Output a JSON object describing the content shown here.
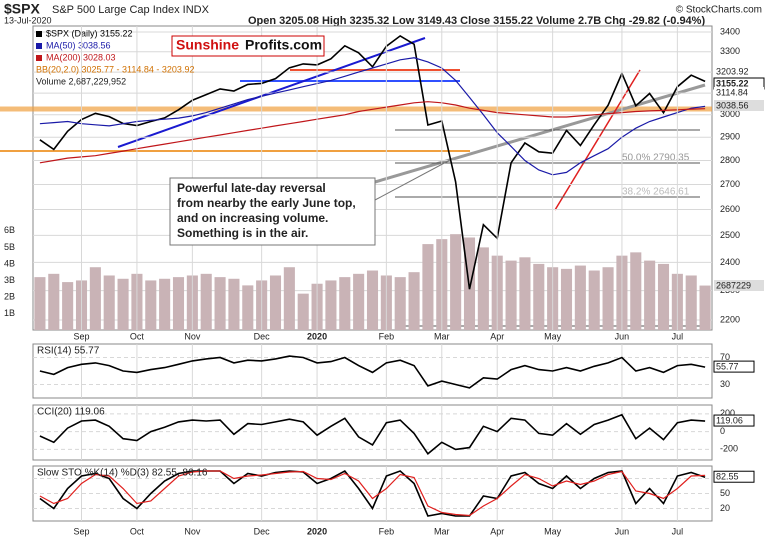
{
  "chart_data": [
    {
      "type": "line",
      "log_scale": true,
      "title": "$SPX",
      "subtitle": "S&P 500 Large Cap Index INDX",
      "date": "13-Jul-2020",
      "quote": "Open 3205.08 High 3235.32 Low 3149.43 Close 3155.22 Volume 2.7B Chg -29.82 (-0.94%)",
      "source": "© StockCharts.com",
      "watermark": [
        "Sunshine",
        "Profits.com"
      ],
      "annotation": [
        "Powerful late-day reversal",
        "from nearby the early June top,",
        "and on increasing volume.",
        "Something is in the air."
      ],
      "bb_legend": "BB(20,2.0) 3025.77 - 3114.84 - 3203.92",
      "price_labels": [
        "3203.92",
        "3155.22",
        "3114.84",
        "3038.56"
      ],
      "fib_labels": [
        "50.0% 2790.35",
        "38.2% 2646.61"
      ],
      "categories": [
        null,
        null,
        null,
        "Sep",
        null,
        null,
        null,
        "Oct",
        null,
        null,
        null,
        "Nov",
        null,
        null,
        null,
        null,
        "Dec",
        null,
        null,
        null,
        "2020",
        null,
        null,
        null,
        null,
        "Feb",
        null,
        null,
        null,
        "Mar",
        null,
        null,
        null,
        "Apr",
        null,
        null,
        null,
        "May",
        null,
        null,
        null,
        null,
        "Jun",
        null,
        null,
        null,
        "Jul",
        null,
        null
      ],
      "series": [
        {
          "name": "$SPX (Daily) 3155.22",
          "color": "#000000",
          "values": [
            2889,
            2847,
            2926,
            2979,
            3007,
            2992,
            2961,
            2952,
            2970,
            2986,
            3023,
            3067,
            3093,
            3120,
            3110,
            3141,
            3146,
            3169,
            3221,
            3240,
            3235,
            3265,
            3330,
            3295,
            3226,
            3328,
            3380,
            3338,
            2954,
            2972,
            2711,
            2305,
            2541,
            2489,
            2790,
            2875,
            2837,
            2831,
            2930,
            2864,
            2955,
            3044,
            3194,
            3041,
            3098,
            3009,
            3130,
            3185,
            3155.22
          ]
        },
        {
          "name": "MA(50) 3038.56",
          "color": "#1a1aa8",
          "values": [
            2960,
            2965,
            2970,
            2960,
            2955,
            2950,
            2960,
            2970,
            2975,
            2980,
            2985,
            2995,
            3010,
            3030,
            3050,
            3070,
            3085,
            3100,
            3115,
            3130,
            3145,
            3160,
            3180,
            3200,
            3220,
            3240,
            3260,
            3270,
            3250,
            3220,
            3160,
            3080,
            3000,
            2920,
            2860,
            2800,
            2760,
            2740,
            2750,
            2790,
            2820,
            2850,
            2900,
            2940,
            2970,
            2990,
            3010,
            3030,
            3038.56
          ]
        },
        {
          "name": "MA(200) 3028.03",
          "color": "#c0161a",
          "values": [
            2790,
            2800,
            2810,
            2815,
            2820,
            2830,
            2840,
            2850,
            2860,
            2870,
            2880,
            2890,
            2900,
            2910,
            2920,
            2930,
            2940,
            2950,
            2960,
            2970,
            2980,
            2990,
            3000,
            3015,
            3025,
            3035,
            3045,
            3055,
            3060,
            3055,
            3045,
            3030,
            3020,
            3010,
            3005,
            3000,
            2995,
            2990,
            2990,
            2995,
            3000,
            3005,
            3010,
            3015,
            3018,
            3020,
            3023,
            3026,
            3028.03
          ]
        }
      ],
      "ylim": [
        2167,
        3431
      ],
      "yticks": [
        2200,
        2300,
        2400,
        2500,
        2600,
        2700,
        2800,
        2900,
        3000,
        3100,
        3200,
        3300,
        3400
      ],
      "volume": {
        "name": "Volume 2,687,229,952",
        "label": "2687229",
        "color": "#c9b3b6",
        "values": [
          3.2,
          3.4,
          2.9,
          3.0,
          3.8,
          3.3,
          3.1,
          3.4,
          3.0,
          3.1,
          3.2,
          3.3,
          3.4,
          3.2,
          3.1,
          2.7,
          3.0,
          3.3,
          3.8,
          2.2,
          2.8,
          3.0,
          3.2,
          3.4,
          3.6,
          3.3,
          3.2,
          3.5,
          5.2,
          5.5,
          5.8,
          5.6,
          5.0,
          4.5,
          4.2,
          4.4,
          4.0,
          3.8,
          3.7,
          3.9,
          3.6,
          3.8,
          4.5,
          4.7,
          4.2,
          4.0,
          3.4,
          3.3,
          2.69
        ],
        "ylim": [
          0,
          18.4
        ],
        "yticks": [
          {
            "value": 1,
            "label": "1B"
          },
          {
            "value": 2,
            "label": "2B"
          },
          {
            "value": 3,
            "label": "3B"
          },
          {
            "value": 4,
            "label": "4B"
          },
          {
            "value": 5,
            "label": "5B"
          },
          {
            "value": 6,
            "label": "6B"
          }
        ]
      }
    },
    {
      "type": "line",
      "title": "RSI(14) 55.77",
      "current": "55.77",
      "series": [
        {
          "name": "RSI",
          "color": "#000000",
          "values": [
            50,
            45,
            55,
            60,
            62,
            58,
            50,
            48,
            52,
            55,
            60,
            65,
            68,
            70,
            62,
            66,
            65,
            68,
            72,
            70,
            62,
            64,
            70,
            58,
            48,
            62,
            66,
            58,
            28,
            35,
            30,
            25,
            40,
            38,
            52,
            58,
            52,
            50,
            55,
            50,
            57,
            62,
            70,
            50,
            55,
            48,
            58,
            60,
            55.77
          ]
        }
      ],
      "ylim": [
        10,
        90
      ],
      "yticks": [
        30,
        70
      ]
    },
    {
      "type": "line",
      "title": "CCI(20) 119.06",
      "current": "119.06",
      "series": [
        {
          "name": "CCI",
          "color": "#000000",
          "values": [
            -50,
            -120,
            40,
            120,
            130,
            60,
            -80,
            -100,
            0,
            50,
            110,
            130,
            120,
            130,
            -30,
            90,
            80,
            110,
            140,
            110,
            -40,
            60,
            150,
            -60,
            -150,
            100,
            130,
            -20,
            -250,
            -120,
            -200,
            -180,
            60,
            0,
            150,
            130,
            -20,
            -40,
            90,
            -30,
            80,
            130,
            190,
            -80,
            40,
            -90,
            100,
            130,
            119.06
          ]
        }
      ],
      "ylim": [
        -320,
        300
      ],
      "yticks": [
        -200,
        0,
        200
      ]
    },
    {
      "type": "line",
      "title": "Slow STO %K(14) %D(3) 82.55, 86.16",
      "current": "82.55",
      "series": [
        {
          "name": "%K",
          "color": "#000000",
          "values": [
            40,
            20,
            60,
            85,
            90,
            80,
            40,
            20,
            50,
            75,
            90,
            95,
            95,
            95,
            70,
            90,
            85,
            92,
            95,
            93,
            70,
            80,
            95,
            60,
            20,
            85,
            95,
            70,
            5,
            10,
            5,
            5,
            45,
            40,
            85,
            92,
            70,
            60,
            85,
            60,
            80,
            92,
            95,
            30,
            60,
            30,
            85,
            92,
            82.55
          ]
        },
        {
          "name": "%D",
          "color": "#e0201e",
          "values": [
            45,
            30,
            40,
            70,
            88,
            85,
            60,
            30,
            35,
            60,
            85,
            93,
            95,
            95,
            80,
            85,
            87,
            90,
            93,
            94,
            80,
            78,
            90,
            75,
            40,
            60,
            88,
            82,
            25,
            12,
            8,
            6,
            25,
            40,
            65,
            88,
            80,
            65,
            75,
            68,
            75,
            88,
            94,
            55,
            50,
            40,
            60,
            85,
            86.16
          ]
        }
      ],
      "ylim": [
        -5,
        105
      ],
      "yticks": [
        20,
        50,
        80
      ]
    }
  ]
}
